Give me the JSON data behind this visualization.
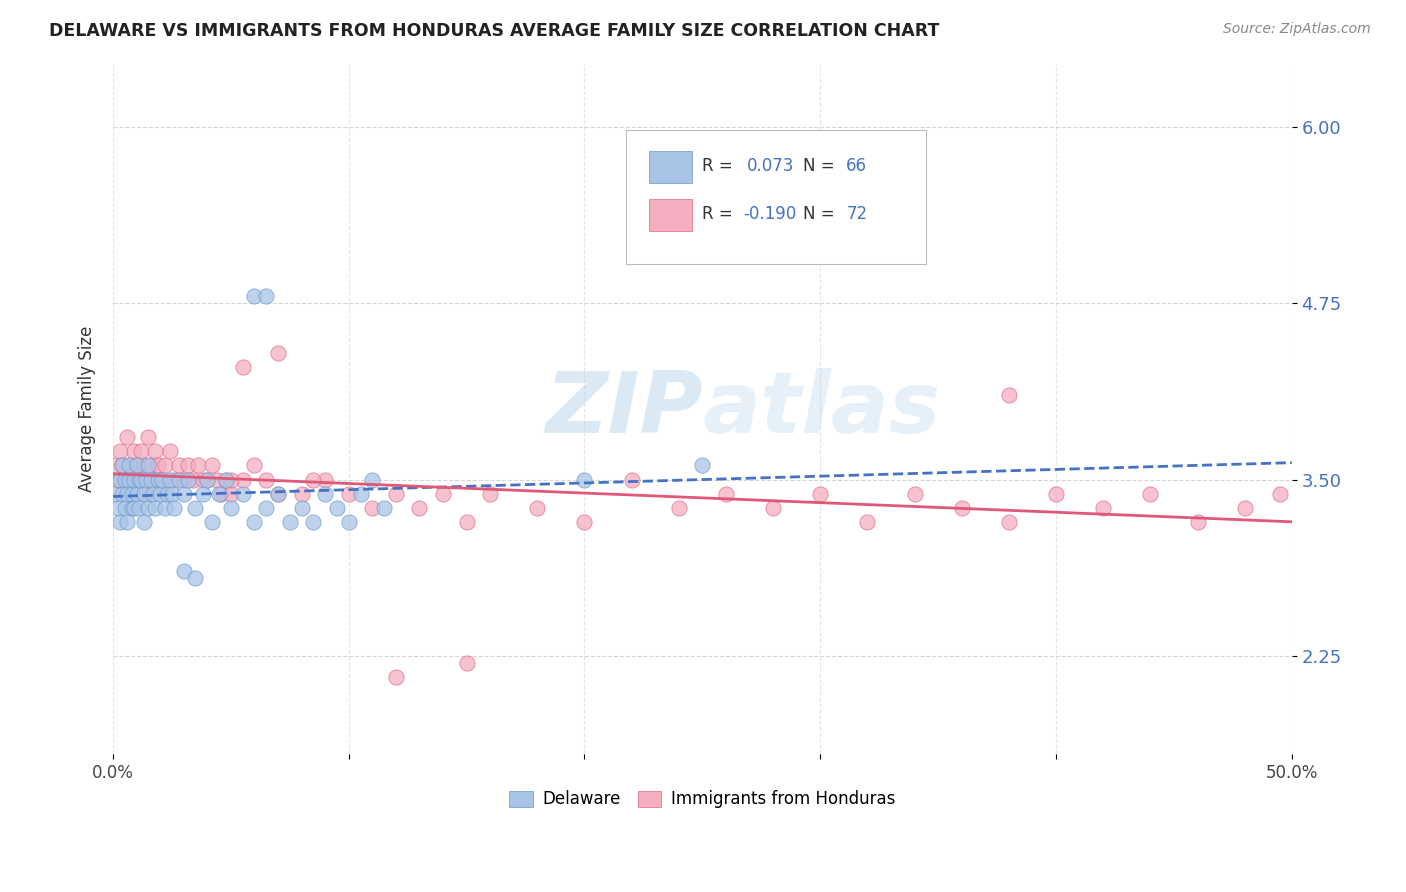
{
  "title": "DELAWARE VS IMMIGRANTS FROM HONDURAS AVERAGE FAMILY SIZE CORRELATION CHART",
  "source": "Source: ZipAtlas.com",
  "ylabel": "Average Family Size",
  "xmin": 0.0,
  "xmax": 0.5,
  "ymin": 1.55,
  "ymax": 6.45,
  "yticks": [
    2.25,
    3.5,
    4.75,
    6.0
  ],
  "grid_color": "#cccccc",
  "watermark": "ZIPatlas",
  "delaware_color": "#aac4e8",
  "delaware_edge_color": "#6699cc",
  "delaware_line_color": "#4472c4",
  "honduras_color": "#f4aec0",
  "honduras_edge_color": "#dd6688",
  "honduras_line_color": "#e05878",
  "del_line_x0": 0.0,
  "del_line_x1": 0.5,
  "del_line_y0": 3.38,
  "del_line_y1": 3.62,
  "hon_line_x0": 0.0,
  "hon_line_x1": 0.5,
  "hon_line_y0": 3.54,
  "hon_line_y1": 3.2,
  "del_x": [
    0.001,
    0.002,
    0.003,
    0.003,
    0.004,
    0.004,
    0.005,
    0.005,
    0.006,
    0.006,
    0.007,
    0.007,
    0.008,
    0.008,
    0.009,
    0.009,
    0.01,
    0.01,
    0.011,
    0.011,
    0.012,
    0.013,
    0.013,
    0.014,
    0.015,
    0.015,
    0.016,
    0.017,
    0.018,
    0.019,
    0.02,
    0.021,
    0.022,
    0.023,
    0.024,
    0.025,
    0.026,
    0.028,
    0.03,
    0.032,
    0.035,
    0.038,
    0.04,
    0.042,
    0.045,
    0.048,
    0.05,
    0.055,
    0.06,
    0.065,
    0.07,
    0.075,
    0.08,
    0.085,
    0.09,
    0.095,
    0.1,
    0.105,
    0.11,
    0.115,
    0.06,
    0.065,
    0.03,
    0.035,
    0.2,
    0.25
  ],
  "del_y": [
    3.4,
    3.3,
    3.5,
    3.2,
    3.6,
    3.4,
    3.3,
    3.5,
    3.4,
    3.2,
    3.6,
    3.5,
    3.3,
    3.4,
    3.5,
    3.3,
    3.4,
    3.6,
    3.5,
    3.3,
    3.5,
    3.4,
    3.2,
    3.5,
    3.3,
    3.6,
    3.5,
    3.4,
    3.3,
    3.5,
    3.4,
    3.5,
    3.3,
    3.4,
    3.5,
    3.4,
    3.3,
    3.5,
    3.4,
    3.5,
    3.3,
    3.4,
    3.5,
    3.2,
    3.4,
    3.5,
    3.3,
    3.4,
    3.2,
    3.3,
    3.4,
    3.2,
    3.3,
    3.2,
    3.4,
    3.3,
    3.2,
    3.4,
    3.5,
    3.3,
    4.8,
    4.8,
    2.85,
    2.8,
    3.5,
    3.6
  ],
  "hon_x": [
    0.001,
    0.002,
    0.003,
    0.004,
    0.005,
    0.006,
    0.007,
    0.008,
    0.009,
    0.01,
    0.011,
    0.012,
    0.013,
    0.014,
    0.015,
    0.016,
    0.017,
    0.018,
    0.019,
    0.02,
    0.022,
    0.024,
    0.026,
    0.028,
    0.03,
    0.032,
    0.034,
    0.036,
    0.038,
    0.04,
    0.042,
    0.044,
    0.046,
    0.048,
    0.05,
    0.055,
    0.06,
    0.065,
    0.07,
    0.08,
    0.09,
    0.1,
    0.11,
    0.12,
    0.13,
    0.14,
    0.15,
    0.16,
    0.18,
    0.2,
    0.22,
    0.24,
    0.26,
    0.28,
    0.3,
    0.32,
    0.34,
    0.36,
    0.38,
    0.4,
    0.42,
    0.44,
    0.46,
    0.48,
    0.495,
    0.05,
    0.055,
    0.07,
    0.085,
    0.38,
    0.15,
    0.12
  ],
  "hon_y": [
    3.6,
    3.5,
    3.7,
    3.6,
    3.5,
    3.8,
    3.6,
    3.5,
    3.7,
    3.6,
    3.5,
    3.7,
    3.6,
    3.4,
    3.8,
    3.6,
    3.5,
    3.7,
    3.6,
    3.5,
    3.6,
    3.7,
    3.5,
    3.6,
    3.5,
    3.6,
    3.5,
    3.6,
    3.5,
    3.5,
    3.6,
    3.5,
    3.4,
    3.5,
    3.4,
    3.5,
    3.6,
    3.5,
    3.4,
    3.4,
    3.5,
    3.4,
    3.3,
    3.4,
    3.3,
    3.4,
    3.2,
    3.4,
    3.3,
    3.2,
    3.5,
    3.3,
    3.4,
    3.3,
    3.4,
    3.2,
    3.4,
    3.3,
    3.2,
    3.4,
    3.3,
    3.4,
    3.2,
    3.3,
    3.4,
    3.5,
    4.3,
    4.4,
    3.5,
    4.1,
    2.2,
    2.1
  ]
}
